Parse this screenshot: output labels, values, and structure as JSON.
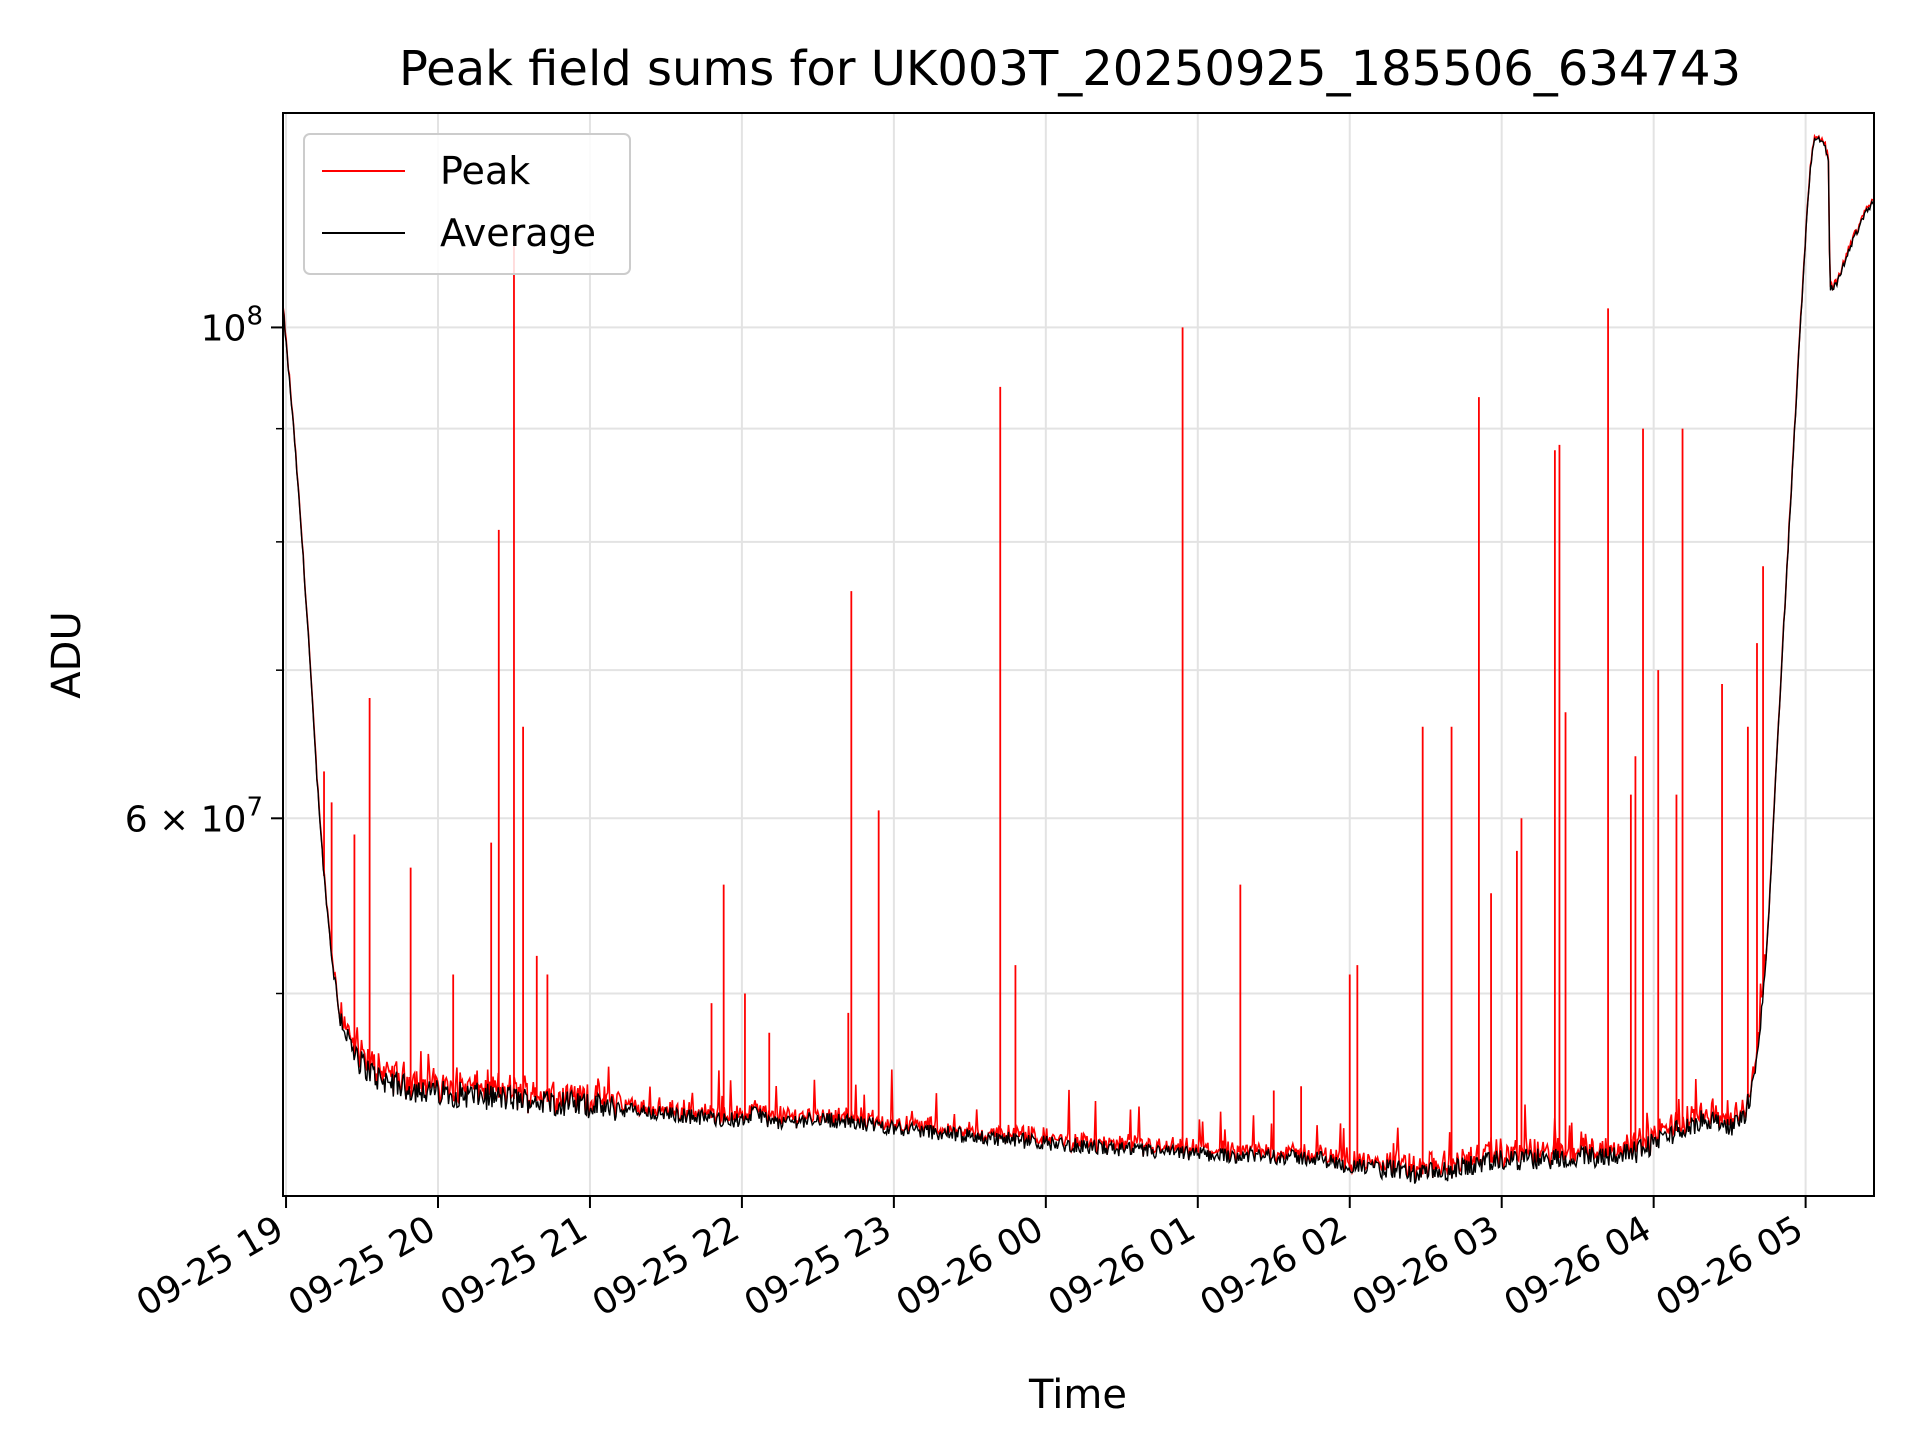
{
  "chart_data": {
    "type": "line",
    "title": "Peak field sums for UK003T_20250925_185506_634743",
    "xlabel": "Time",
    "ylabel": "ADU",
    "y_scale": "log",
    "ylim": [
      40500000,
      125000000
    ],
    "xlim_hours": [
      18.98,
      29.45
    ],
    "x_unit": "hours since 2025-09-25 00:00",
    "grid": true,
    "legend_position": "top-left",
    "x_ticks": [
      {
        "hours": 19,
        "label": "09-25 19"
      },
      {
        "hours": 20,
        "label": "09-25 20"
      },
      {
        "hours": 21,
        "label": "09-25 21"
      },
      {
        "hours": 22,
        "label": "09-25 22"
      },
      {
        "hours": 23,
        "label": "09-25 23"
      },
      {
        "hours": 24,
        "label": "09-26 00"
      },
      {
        "hours": 25,
        "label": "09-26 01"
      },
      {
        "hours": 26,
        "label": "09-26 02"
      },
      {
        "hours": 27,
        "label": "09-26 03"
      },
      {
        "hours": 28,
        "label": "09-26 04"
      },
      {
        "hours": 29,
        "label": "09-26 05"
      }
    ],
    "y_major_ticks": [
      {
        "value": 60000000,
        "base": "6 × 10",
        "exp": "7"
      },
      {
        "value": 100000000,
        "base": "10",
        "exp": "8"
      }
    ],
    "y_minor_ticks": [
      50000000,
      70000000,
      80000000,
      90000000
    ],
    "series": [
      {
        "name": "Average",
        "color": "#000000",
        "baseline": [
          [
            18.98,
            102000000
          ],
          [
            19.05,
            90000000
          ],
          [
            19.1,
            81000000
          ],
          [
            19.15,
            72000000
          ],
          [
            19.2,
            63000000
          ],
          [
            19.25,
            56500000
          ],
          [
            19.3,
            52000000
          ],
          [
            19.35,
            49000000
          ],
          [
            19.45,
            46800000
          ],
          [
            19.6,
            45800000
          ],
          [
            19.8,
            45300000
          ],
          [
            20.0,
            45100000
          ],
          [
            20.5,
            44800000
          ],
          [
            21.0,
            44500000
          ],
          [
            21.5,
            44100000
          ],
          [
            22.0,
            43800000
          ],
          [
            22.1,
            44200000
          ],
          [
            22.2,
            43700000
          ],
          [
            22.5,
            43900000
          ],
          [
            23.0,
            43500000
          ],
          [
            23.5,
            43100000
          ],
          [
            24.0,
            42800000
          ],
          [
            24.5,
            42500000
          ],
          [
            25.0,
            42300000
          ],
          [
            25.5,
            42200000
          ],
          [
            25.8,
            42100000
          ],
          [
            26.0,
            41800000
          ],
          [
            26.3,
            41600000
          ],
          [
            26.45,
            41400000
          ],
          [
            26.6,
            41500000
          ],
          [
            26.8,
            41800000
          ],
          [
            27.0,
            42000000
          ],
          [
            27.3,
            42100000
          ],
          [
            27.6,
            42200000
          ],
          [
            27.9,
            42400000
          ],
          [
            28.05,
            43000000
          ],
          [
            28.2,
            43500000
          ],
          [
            28.4,
            44000000
          ],
          [
            28.5,
            43400000
          ],
          [
            28.6,
            44000000
          ],
          [
            28.65,
            45500000
          ],
          [
            28.7,
            48000000
          ],
          [
            28.75,
            53000000
          ],
          [
            28.8,
            62000000
          ],
          [
            28.85,
            72000000
          ],
          [
            28.9,
            83000000
          ],
          [
            28.95,
            96000000
          ],
          [
            29.0,
            110000000
          ],
          [
            29.03,
            118000000
          ],
          [
            29.06,
            122000000
          ],
          [
            29.12,
            121000000
          ],
          [
            29.15,
            119000000
          ],
          [
            29.16,
            104000000
          ],
          [
            29.2,
            104500000
          ],
          [
            29.3,
            109000000
          ],
          [
            29.4,
            113000000
          ],
          [
            29.45,
            114000000
          ]
        ]
      },
      {
        "name": "Peak",
        "color": "#ff0000",
        "spikes": [
          [
            19.25,
            63000000
          ],
          [
            19.3,
            61000000
          ],
          [
            19.45,
            59000000
          ],
          [
            19.55,
            68000000
          ],
          [
            19.82,
            57000000
          ],
          [
            20.1,
            51000000
          ],
          [
            20.35,
            58500000
          ],
          [
            20.4,
            81000000
          ],
          [
            20.5,
            111000000
          ],
          [
            20.56,
            66000000
          ],
          [
            20.65,
            52000000
          ],
          [
            20.72,
            51000000
          ],
          [
            21.8,
            49500000
          ],
          [
            21.88,
            56000000
          ],
          [
            22.02,
            50000000
          ],
          [
            22.18,
            48000000
          ],
          [
            22.7,
            49000000
          ],
          [
            22.72,
            76000000
          ],
          [
            22.9,
            60500000
          ],
          [
            23.7,
            94000000
          ],
          [
            23.8,
            51500000
          ],
          [
            24.9,
            100000000
          ],
          [
            25.28,
            56000000
          ],
          [
            25.5,
            45200000
          ],
          [
            25.68,
            45400000
          ],
          [
            26.0,
            51000000
          ],
          [
            26.05,
            51500000
          ],
          [
            26.48,
            66000000
          ],
          [
            26.67,
            66000000
          ],
          [
            26.85,
            93000000
          ],
          [
            26.93,
            55500000
          ],
          [
            27.1,
            58000000
          ],
          [
            27.13,
            60000000
          ],
          [
            27.35,
            88000000
          ],
          [
            27.38,
            88500000
          ],
          [
            27.42,
            67000000
          ],
          [
            27.7,
            102000000
          ],
          [
            27.85,
            61500000
          ],
          [
            27.88,
            64000000
          ],
          [
            27.93,
            90000000
          ],
          [
            28.03,
            70000000
          ],
          [
            28.15,
            61500000
          ],
          [
            28.19,
            90000000
          ],
          [
            28.45,
            69000000
          ],
          [
            28.62,
            66000000
          ],
          [
            28.68,
            72000000
          ],
          [
            28.72,
            78000000
          ]
        ]
      }
    ]
  }
}
